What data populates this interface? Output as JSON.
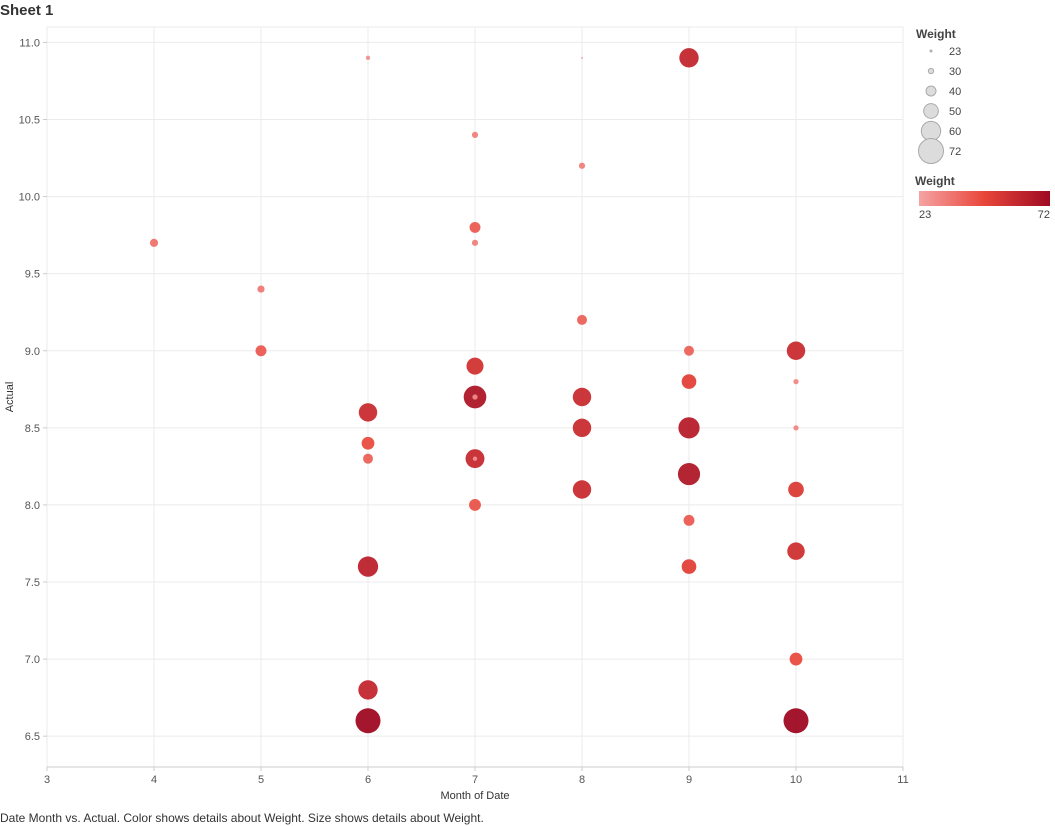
{
  "sheet": {
    "title": "Sheet 1"
  },
  "caption": "Date Month vs. Actual.  Color shows details about Weight.  Size shows details about Weight.",
  "colors": {
    "min": "#f5a3a3",
    "mid": "#e8463a",
    "max": "#9e0a22",
    "grid": "#ebebeb",
    "axis": "#cccccc"
  },
  "legend": {
    "size_title": "Weight",
    "size_entries": [
      23,
      30,
      40,
      50,
      60,
      72
    ],
    "color_title": "Weight",
    "color_min_label": "23",
    "color_max_label": "72"
  },
  "chart_data": {
    "type": "scatter",
    "xlabel": "Month of Date",
    "ylabel": "Actual",
    "xlim": [
      3,
      11
    ],
    "ylim": [
      6.3,
      11.1
    ],
    "xticks": [
      3,
      4,
      5,
      6,
      7,
      8,
      9,
      10,
      11
    ],
    "yticks": [
      6.5,
      7.0,
      7.5,
      8.0,
      8.5,
      9.0,
      9.5,
      10.0,
      10.5,
      11.0
    ],
    "ytick_labels": [
      "6.5",
      "7.0",
      "7.5",
      "8.0",
      "8.5",
      "9.0",
      "9.5",
      "10.0",
      "10.5",
      "11.0"
    ],
    "size_and_color_field": "Weight",
    "weight_range": [
      23,
      72
    ],
    "points": [
      {
        "x": 4,
        "y": 9.7,
        "weight": 36
      },
      {
        "x": 5,
        "y": 9.4,
        "weight": 34
      },
      {
        "x": 5,
        "y": 9.0,
        "weight": 42
      },
      {
        "x": 6,
        "y": 10.9,
        "weight": 28
      },
      {
        "x": 6,
        "y": 8.6,
        "weight": 58
      },
      {
        "x": 6,
        "y": 8.4,
        "weight": 46
      },
      {
        "x": 6,
        "y": 8.3,
        "weight": 40
      },
      {
        "x": 6,
        "y": 7.6,
        "weight": 62
      },
      {
        "x": 6,
        "y": 6.8,
        "weight": 60
      },
      {
        "x": 6,
        "y": 6.6,
        "weight": 72
      },
      {
        "x": 7,
        "y": 10.4,
        "weight": 32
      },
      {
        "x": 7,
        "y": 9.8,
        "weight": 42
      },
      {
        "x": 7,
        "y": 9.7,
        "weight": 32
      },
      {
        "x": 7,
        "y": 8.9,
        "weight": 55
      },
      {
        "x": 7,
        "y": 8.7,
        "weight": 67
      },
      {
        "x": 7,
        "y": 8.7,
        "weight": 30
      },
      {
        "x": 7,
        "y": 8.3,
        "weight": 59
      },
      {
        "x": 7,
        "y": 8.3,
        "weight": 28
      },
      {
        "x": 7,
        "y": 8.0,
        "weight": 44
      },
      {
        "x": 8,
        "y": 10.9,
        "weight": 23
      },
      {
        "x": 8,
        "y": 10.2,
        "weight": 32
      },
      {
        "x": 8,
        "y": 9.2,
        "weight": 40
      },
      {
        "x": 8,
        "y": 8.7,
        "weight": 58
      },
      {
        "x": 8,
        "y": 8.5,
        "weight": 58
      },
      {
        "x": 8,
        "y": 8.1,
        "weight": 58
      },
      {
        "x": 9,
        "y": 10.9,
        "weight": 60
      },
      {
        "x": 9,
        "y": 9.0,
        "weight": 40
      },
      {
        "x": 9,
        "y": 8.8,
        "weight": 50
      },
      {
        "x": 9,
        "y": 8.5,
        "weight": 64
      },
      {
        "x": 9,
        "y": 8.2,
        "weight": 66
      },
      {
        "x": 9,
        "y": 7.9,
        "weight": 42
      },
      {
        "x": 9,
        "y": 7.6,
        "weight": 50
      },
      {
        "x": 10,
        "y": 9.0,
        "weight": 58
      },
      {
        "x": 10,
        "y": 8.8,
        "weight": 30
      },
      {
        "x": 10,
        "y": 8.5,
        "weight": 30
      },
      {
        "x": 10,
        "y": 8.1,
        "weight": 52
      },
      {
        "x": 10,
        "y": 7.7,
        "weight": 56
      },
      {
        "x": 10,
        "y": 7.0,
        "weight": 46
      },
      {
        "x": 10,
        "y": 6.6,
        "weight": 72
      }
    ]
  }
}
